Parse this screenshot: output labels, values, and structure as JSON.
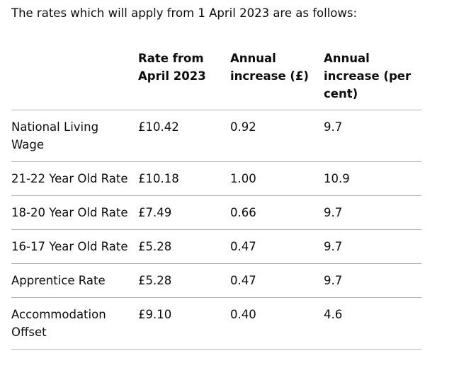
{
  "intro": "The rates which will apply from 1 April 2023 are as follows:",
  "table": {
    "headers": [
      "",
      "Rate from April 2023",
      "Annual increase (£)",
      "Annual increase (per cent)"
    ],
    "rows": [
      [
        "National Living Wage",
        "£10.42",
        "0.92",
        "9.7"
      ],
      [
        "21-22 Year Old Rate",
        "£10.18",
        "1.00",
        "10.9"
      ],
      [
        "18-20 Year Old Rate",
        "£7.49",
        "0.66",
        "9.7"
      ],
      [
        "16-17 Year Old Rate",
        "£5.28",
        "0.47",
        "9.7"
      ],
      [
        "Apprentice Rate",
        "£5.28",
        "0.47",
        "9.7"
      ],
      [
        "Accommodation Offset",
        "£9.10",
        "0.40",
        "4.6"
      ]
    ]
  }
}
